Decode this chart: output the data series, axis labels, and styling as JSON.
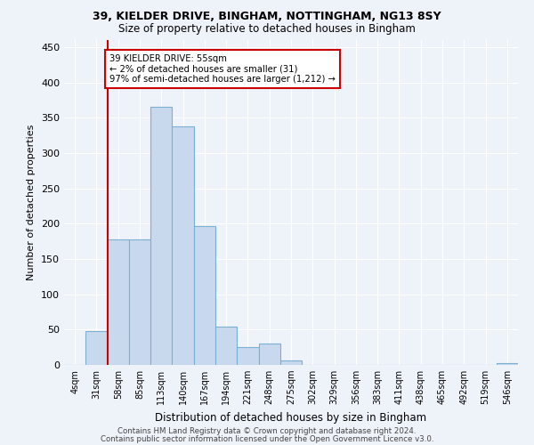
{
  "title_line1": "39, KIELDER DRIVE, BINGHAM, NOTTINGHAM, NG13 8SY",
  "title_line2": "Size of property relative to detached houses in Bingham",
  "xlabel": "Distribution of detached houses by size in Bingham",
  "ylabel": "Number of detached properties",
  "bin_labels": [
    "4sqm",
    "31sqm",
    "58sqm",
    "85sqm",
    "113sqm",
    "140sqm",
    "167sqm",
    "194sqm",
    "221sqm",
    "248sqm",
    "275sqm",
    "302sqm",
    "329sqm",
    "356sqm",
    "383sqm",
    "411sqm",
    "438sqm",
    "465sqm",
    "492sqm",
    "519sqm",
    "546sqm"
  ],
  "bar_values": [
    0,
    48,
    178,
    178,
    365,
    338,
    197,
    54,
    25,
    30,
    6,
    0,
    0,
    0,
    0,
    0,
    0,
    0,
    0,
    0,
    3
  ],
  "bar_color": "#c8d9ed",
  "bar_edge_color": "#7bafd4",
  "marker_color": "#cc0000",
  "annotation_text": "39 KIELDER DRIVE: 55sqm\n← 2% of detached houses are smaller (31)\n97% of semi-detached houses are larger (1,212) →",
  "annotation_box_color": "#cc0000",
  "background_color": "#eef2f9",
  "grid_color": "#ffffff",
  "footer_line1": "Contains HM Land Registry data © Crown copyright and database right 2024.",
  "footer_line2": "Contains public sector information licensed under the Open Government Licence v3.0.",
  "ylim": [
    0,
    460
  ],
  "yticks": [
    0,
    50,
    100,
    150,
    200,
    250,
    300,
    350,
    400,
    450
  ]
}
